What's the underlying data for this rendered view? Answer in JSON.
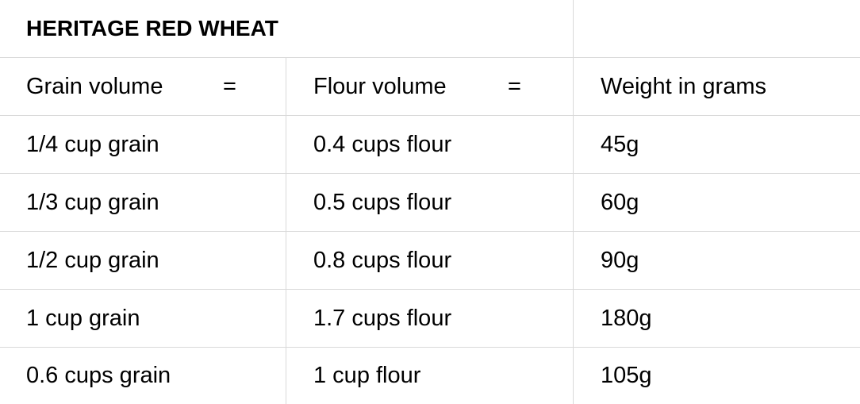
{
  "table": {
    "title": "HERITAGE RED WHEAT",
    "headers": {
      "grain": "Grain volume",
      "equals_1": "=",
      "flour": "Flour volume",
      "equals_2": "=",
      "weight": "Weight in grams"
    },
    "rows": [
      {
        "grain": "1/4 cup grain",
        "flour": "0.4 cups flour",
        "weight": "45g"
      },
      {
        "grain": "1/3 cup grain",
        "flour": "0.5 cups flour",
        "weight": "60g"
      },
      {
        "grain": "1/2 cup grain",
        "flour": "0.8 cups flour",
        "weight": "90g"
      },
      {
        "grain": "1 cup grain",
        "flour": "1.7 cups flour",
        "weight": "180g"
      },
      {
        "grain": "0.6 cups grain",
        "flour": "1 cup flour",
        "weight": "105g"
      }
    ]
  },
  "colors": {
    "grid_line": "#d9d9d9",
    "text": "#000000",
    "background": "#ffffff"
  }
}
